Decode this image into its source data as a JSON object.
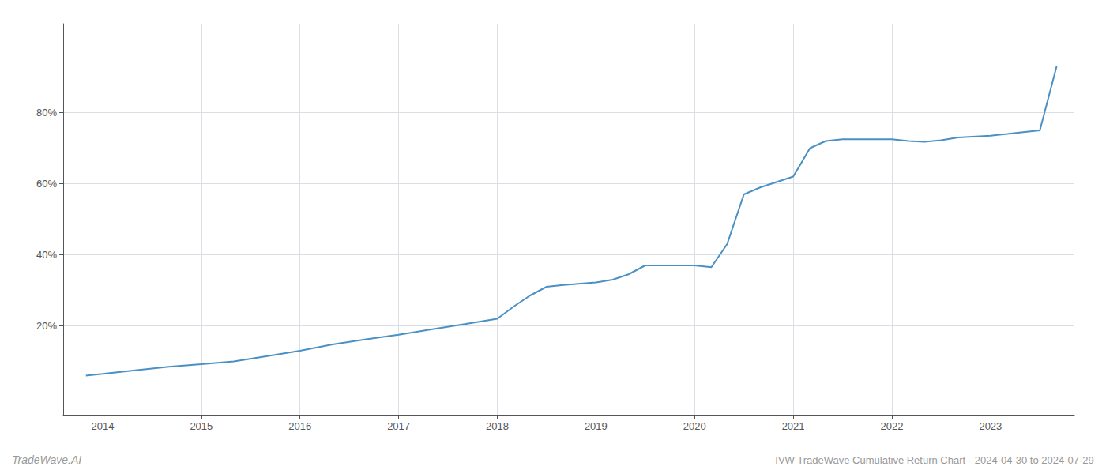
{
  "chart_data": {
    "type": "line",
    "title": "IVW TradeWave Cumulative Return Chart - 2024-04-30 to 2024-07-29",
    "annotations": [
      "TradeWave.AI"
    ],
    "color": "#4a90c4",
    "grid": true,
    "xlim": [
      2013.6,
      2023.85
    ],
    "xticks": [
      2014,
      2015,
      2016,
      2017,
      2018,
      2019,
      2020,
      2021,
      2022,
      2023
    ],
    "ylim": [
      -0.05,
      1.05
    ],
    "yticks": [
      {
        "value": 0.2,
        "label": "20%"
      },
      {
        "value": 0.4,
        "label": "40%"
      },
      {
        "value": 0.6,
        "label": "60%"
      },
      {
        "value": 0.8,
        "label": "80%"
      }
    ],
    "x": [
      2013.83,
      2014.0,
      2014.33,
      2014.67,
      2015.0,
      2015.33,
      2015.67,
      2016.0,
      2016.33,
      2016.67,
      2017.0,
      2017.33,
      2017.67,
      2018.0,
      2018.17,
      2018.33,
      2018.5,
      2018.67,
      2019.0,
      2019.17,
      2019.33,
      2019.5,
      2020.0,
      2020.17,
      2020.33,
      2020.5,
      2020.67,
      2021.0,
      2021.17,
      2021.33,
      2021.5,
      2021.67,
      2022.0,
      2022.17,
      2022.33,
      2022.5,
      2022.67,
      2023.0,
      2023.17,
      2023.33,
      2023.5,
      2023.67
    ],
    "values": [
      0.06,
      0.065,
      0.075,
      0.085,
      0.092,
      0.1,
      0.115,
      0.13,
      0.148,
      0.162,
      0.175,
      0.19,
      0.205,
      0.22,
      0.255,
      0.285,
      0.31,
      0.315,
      0.322,
      0.33,
      0.345,
      0.37,
      0.37,
      0.365,
      0.43,
      0.57,
      0.59,
      0.62,
      0.7,
      0.72,
      0.725,
      0.725,
      0.725,
      0.72,
      0.718,
      0.722,
      0.73,
      0.735,
      0.74,
      0.745,
      0.75,
      0.93
    ]
  }
}
